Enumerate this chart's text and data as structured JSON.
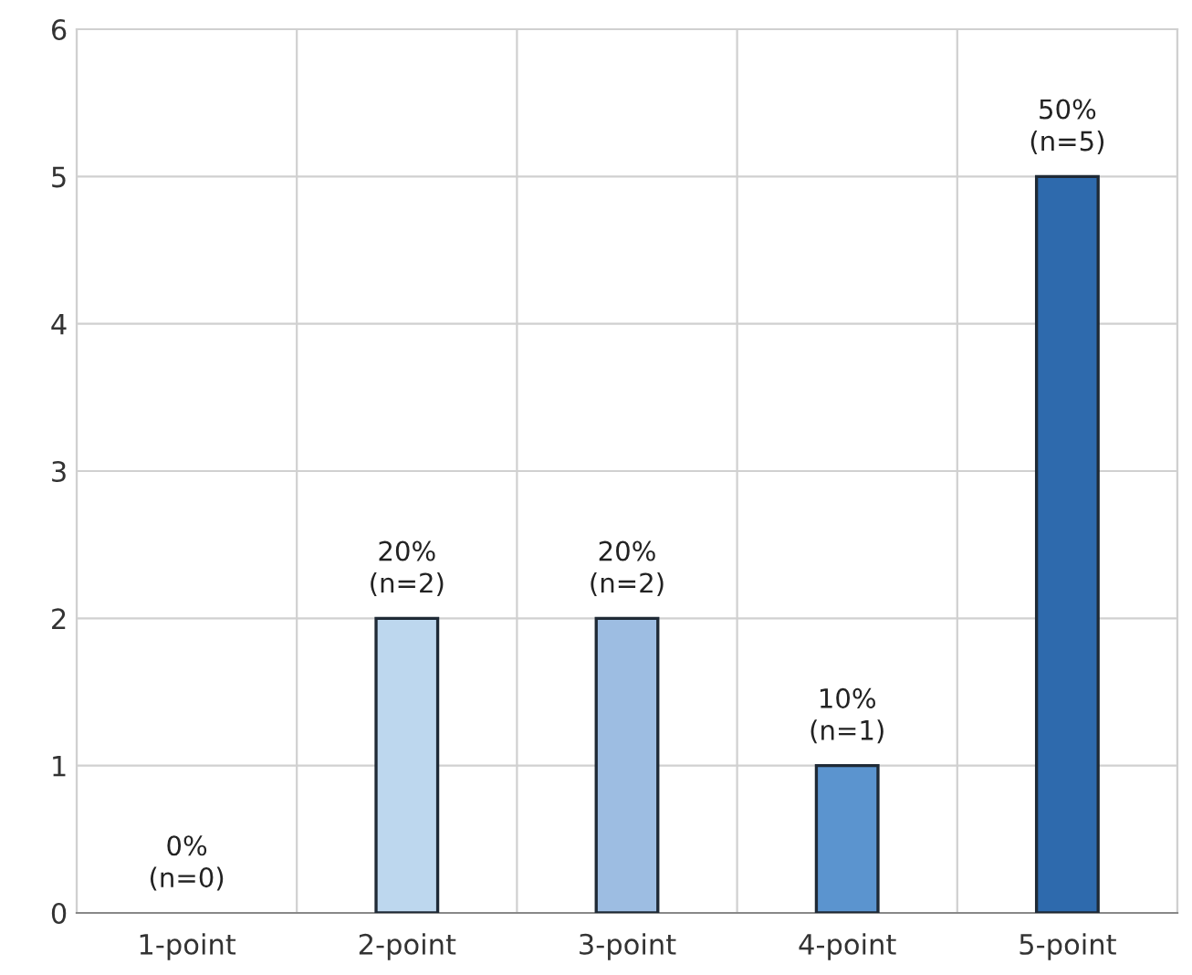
{
  "chart_data": {
    "type": "bar",
    "categories": [
      "1-point",
      "2-point",
      "3-point",
      "4-point",
      "5-point"
    ],
    "values": [
      0,
      2,
      2,
      1,
      5
    ],
    "colors": [
      null,
      "#bdd7ee",
      "#9dbde2",
      "#5b94cf",
      "#2e6aad"
    ],
    "value_labels": [
      "0%\n(n=0)",
      "20%\n(n=2)",
      "20%\n(n=2)",
      "10%\n(n=1)",
      "50%\n(n=5)"
    ],
    "ylim": [
      0,
      6
    ],
    "yticks": [
      0,
      1,
      2,
      3,
      4,
      5,
      6
    ],
    "grid": true
  }
}
